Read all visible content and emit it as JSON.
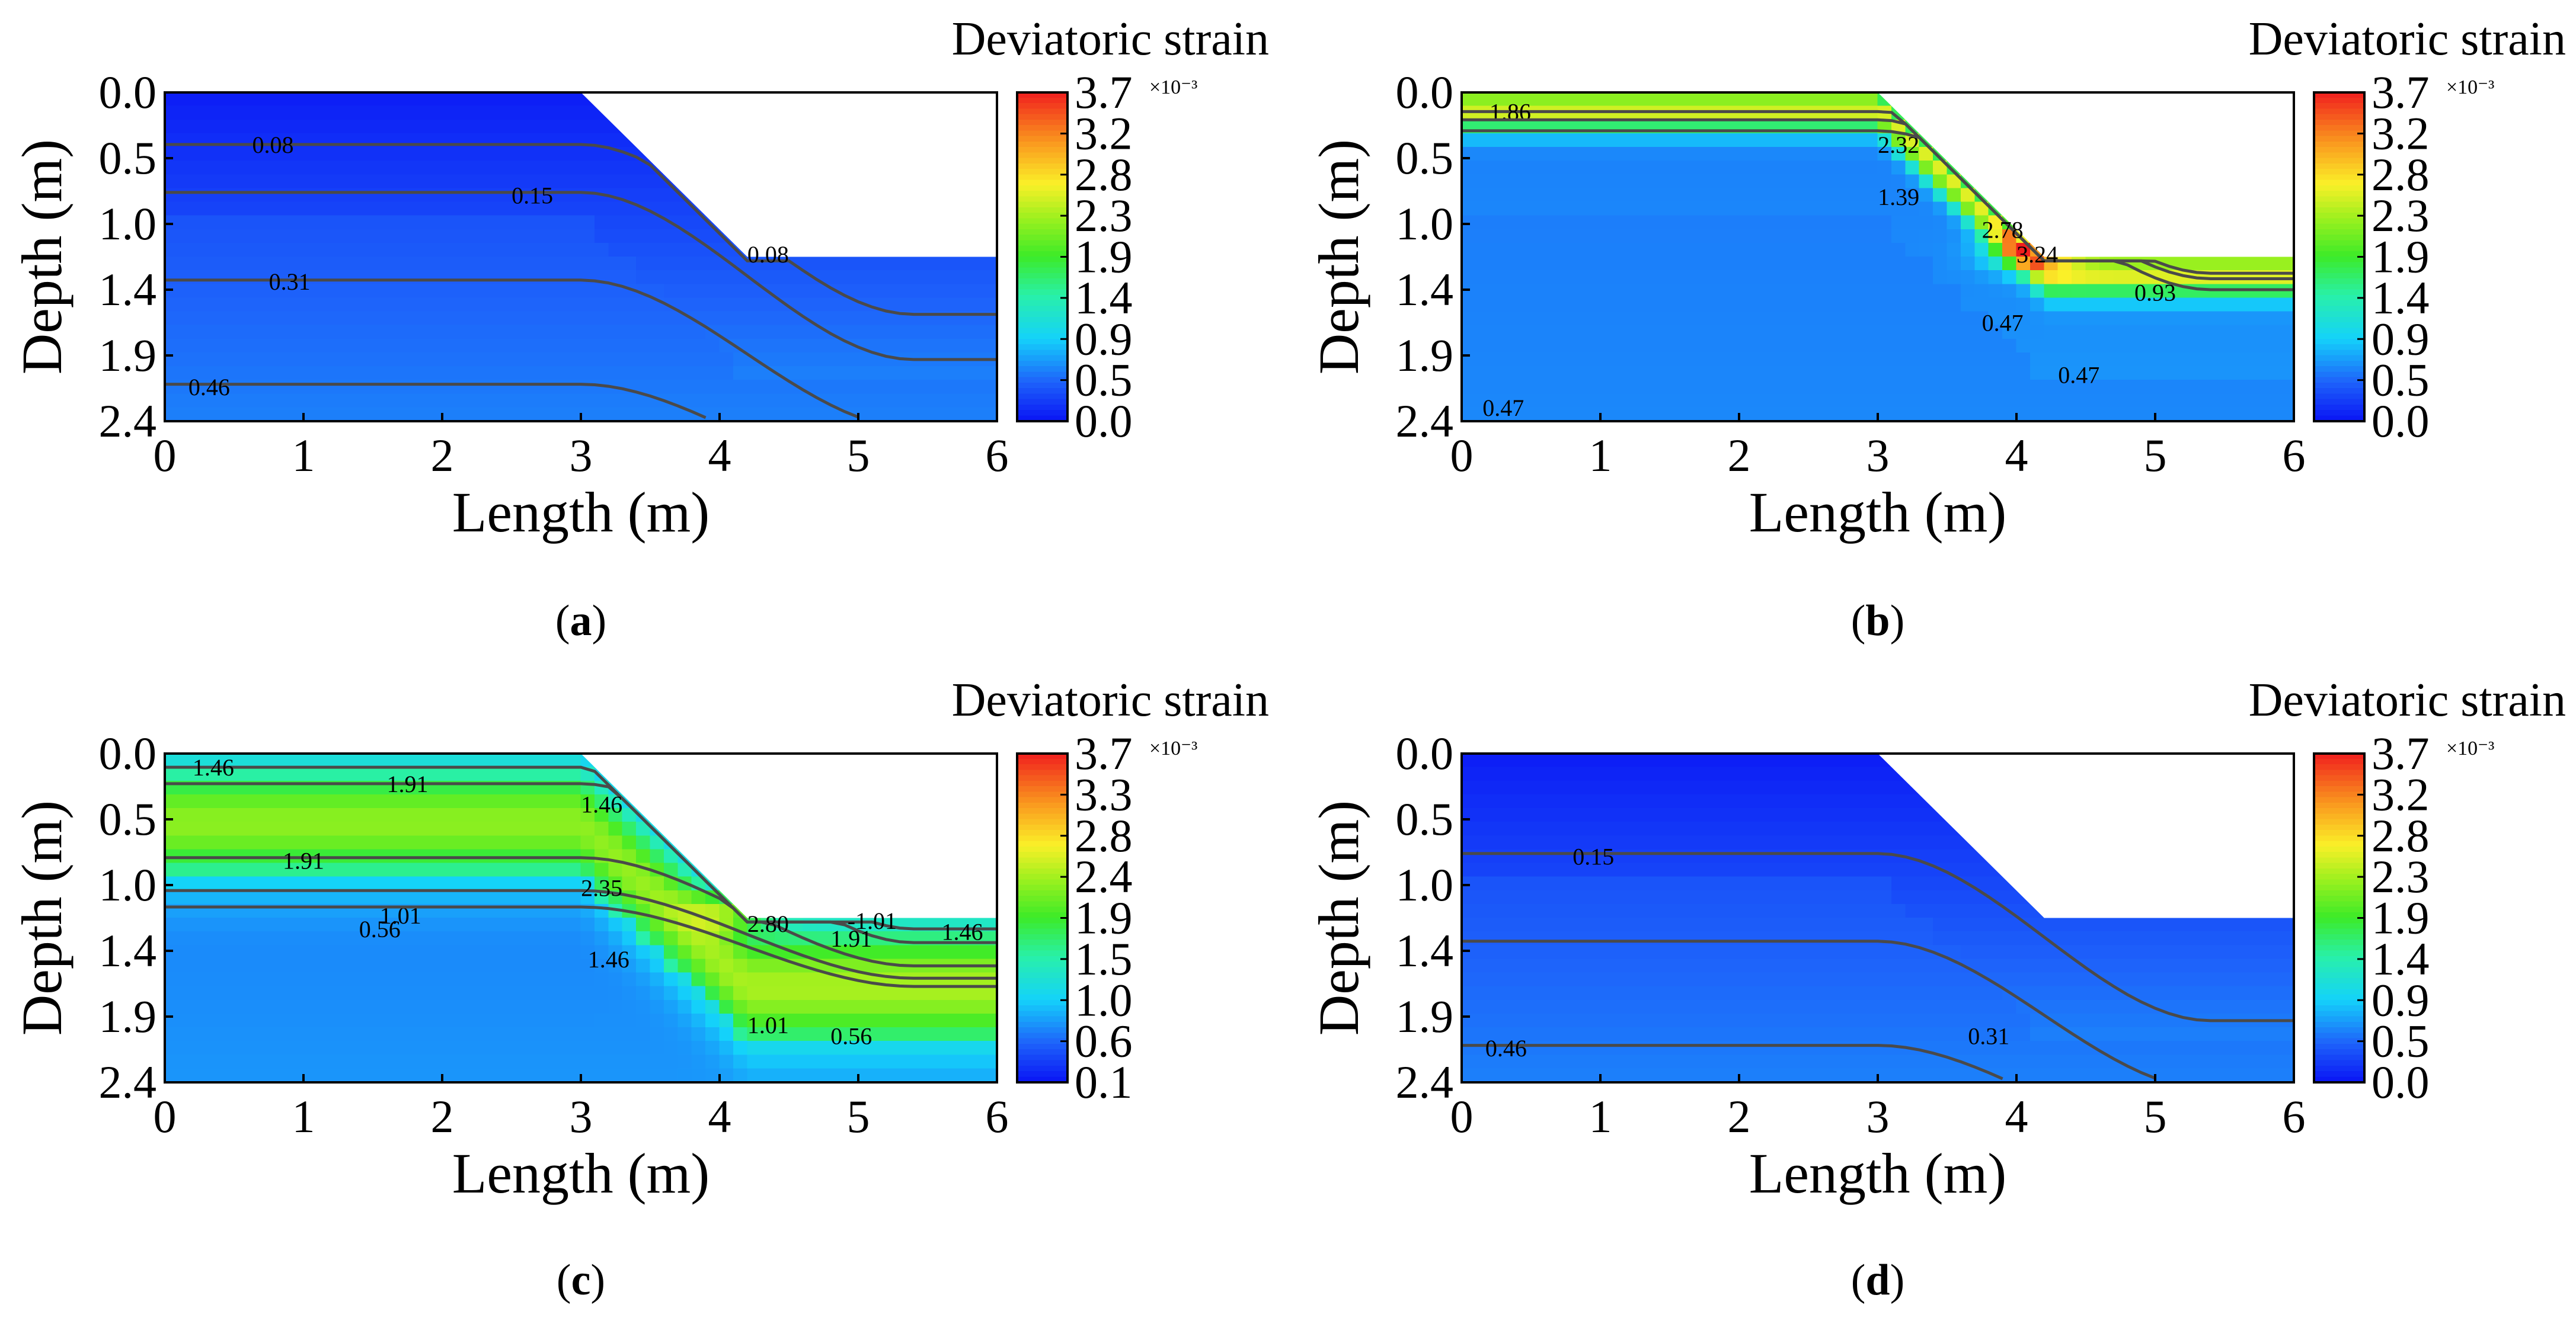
{
  "figure": {
    "panel_letter_open": "(",
    "panel_letter_close": ")"
  },
  "chart_data": [
    {
      "type": "heatmap",
      "panel": "a",
      "colorbar_title": "Deviatoric strain",
      "colorbar_ticks": [
        "3.7",
        "3.2",
        "2.8",
        "2.3",
        "1.9",
        "1.4",
        "0.9",
        "0.5",
        "0.0"
      ],
      "colorbar_exponent": "×10⁻³",
      "colorbar_range": [
        0.0,
        3.7
      ],
      "xlabel": "Length (m)",
      "ylabel": "Depth (m)",
      "xlim": [
        0,
        6
      ],
      "ylim": [
        0.0,
        2.4
      ],
      "xticks": [
        "0",
        "1",
        "2",
        "3",
        "4",
        "5",
        "6"
      ],
      "yticks": [
        "0.0",
        "0.5",
        "1.0",
        "1.4",
        "1.9",
        "2.4"
      ],
      "slope": {
        "crest_x": 3.0,
        "toe_x": 4.2,
        "toe_depth": 1.2
      },
      "field": {
        "base": 0.05,
        "depth_gain": 0.25,
        "slope_band": 0.0,
        "slope_band_center": 0.0,
        "slope_band_width": 0.0,
        "hot_x": 0,
        "hot_depth": 0,
        "hot_amp": 0,
        "deep_value": 0.45
      },
      "contours": [
        {
          "label": "0.08",
          "label_x": 0.78,
          "label_depth": 0.38,
          "depth_left": 0.38,
          "depth_right": 1.62
        },
        {
          "label": "0.15",
          "label_x": 2.65,
          "label_depth": 0.75,
          "depth_left": 0.73,
          "depth_right": 1.95
        },
        {
          "label": "0.31",
          "label_x": 0.9,
          "label_depth": 1.38,
          "depth_left": 1.37,
          "depth_right": 2.45
        },
        {
          "label": "0.46",
          "label_x": 0.32,
          "label_depth": 2.15,
          "depth_left": 2.13,
          "depth_right": 2.9
        }
      ],
      "extra_labels": [
        {
          "label": "0.08",
          "x": 4.35,
          "depth": 1.18
        }
      ]
    },
    {
      "type": "heatmap",
      "panel": "b",
      "colorbar_title": "Deviatoric strain",
      "colorbar_ticks": [
        "3.7",
        "3.2",
        "2.8",
        "2.3",
        "1.9",
        "1.4",
        "0.9",
        "0.5",
        "0.0"
      ],
      "colorbar_exponent": "×10⁻³",
      "colorbar_range": [
        0.0,
        3.7
      ],
      "xlabel": "Length (m)",
      "ylabel": "Depth (m)",
      "xlim": [
        0,
        6
      ],
      "ylim": [
        0.0,
        2.4
      ],
      "xticks": [
        "0",
        "1",
        "2",
        "3",
        "4",
        "5",
        "6"
      ],
      "yticks": [
        "0.0",
        "0.5",
        "1.0",
        "1.4",
        "1.9",
        "2.4"
      ],
      "slope": {
        "crest_x": 3.0,
        "toe_x": 4.2,
        "toe_depth": 1.2
      },
      "field": {
        "base": 0.55,
        "depth_gain": 0.05,
        "slope_band": 2.0,
        "slope_band_center": 0.12,
        "slope_band_width": 0.16,
        "hot_x": 4.1,
        "hot_depth": 1.15,
        "hot_amp": 1.4,
        "deep_value": 0.5
      },
      "contours": [
        {
          "label": "1.86",
          "label_x": 0.35,
          "label_depth": 0.14,
          "depth_left": 0.14,
          "depth_right": 1.32
        },
        {
          "label": "2.32",
          "label_x": 3.15,
          "label_depth": 0.38,
          "depth_left": 0.2,
          "depth_right": 1.36
        },
        {
          "label": "1.39",
          "label_x": 3.15,
          "label_depth": 0.76,
          "depth_left": 0.28,
          "depth_right": 1.44
        }
      ],
      "extra_labels": [
        {
          "label": "2.78",
          "x": 3.9,
          "depth": 1.0
        },
        {
          "label": "3.24",
          "x": 4.15,
          "depth": 1.18
        },
        {
          "label": "0.93",
          "x": 5.0,
          "depth": 1.46
        },
        {
          "label": "0.47",
          "x": 3.9,
          "depth": 1.68
        },
        {
          "label": "0.47",
          "x": 4.45,
          "depth": 2.06
        },
        {
          "label": "0.47",
          "x": 0.3,
          "depth": 2.3
        }
      ]
    },
    {
      "type": "heatmap",
      "panel": "c",
      "colorbar_title": "Deviatoric strain",
      "colorbar_ticks": [
        "3.7",
        "3.3",
        "2.8",
        "2.4",
        "1.9",
        "1.5",
        "1.0",
        "0.6",
        "0.1"
      ],
      "colorbar_exponent": "×10⁻³",
      "colorbar_range": [
        0.1,
        3.7
      ],
      "xlabel": "Length (m)",
      "ylabel": "Depth (m)",
      "xlim": [
        0,
        6
      ],
      "ylim": [
        0.0,
        2.4
      ],
      "xticks": [
        "0",
        "1",
        "2",
        "3",
        "4",
        "5",
        "6"
      ],
      "yticks": [
        "0.0",
        "0.5",
        "1.0",
        "1.4",
        "1.9",
        "2.4"
      ],
      "slope": {
        "crest_x": 3.0,
        "toe_x": 4.2,
        "toe_depth": 1.2
      },
      "field": {
        "base": 0.6,
        "depth_gain": 0.1,
        "slope_band": 1.6,
        "slope_band_center": 0.5,
        "slope_band_width": 0.45,
        "hot_x": 4.1,
        "hot_depth": 1.15,
        "hot_amp": 0.9,
        "deep_value": 0.6
      },
      "contours": [
        {
          "label": "1.46",
          "label_x": 0.35,
          "label_depth": 0.1,
          "depth_left": 0.1,
          "depth_right": 1.28
        },
        {
          "label": "1.91",
          "label_x": 1.75,
          "label_depth": 0.22,
          "depth_left": 0.22,
          "depth_right": 1.38
        },
        {
          "label": "1.91",
          "label_x": 1.0,
          "label_depth": 0.78,
          "depth_left": 0.76,
          "depth_right": 1.55
        },
        {
          "label": "1.01",
          "label_x": 1.7,
          "label_depth": 1.18,
          "depth_left": 1.0,
          "depth_right": 1.64
        },
        {
          "label": "0.56",
          "label_x": 1.55,
          "label_depth": 1.28,
          "depth_left": 1.12,
          "depth_right": 1.7
        }
      ],
      "extra_labels": [
        {
          "label": "1.46",
          "x": 3.15,
          "depth": 0.37
        },
        {
          "label": "2.35",
          "x": 3.15,
          "depth": 0.98
        },
        {
          "label": "2.80",
          "x": 4.35,
          "depth": 1.24
        },
        {
          "label": "-1.01",
          "x": 5.1,
          "depth": 1.22
        },
        {
          "label": "1.91",
          "x": 4.95,
          "depth": 1.35
        },
        {
          "label": "1.46",
          "x": 5.75,
          "depth": 1.3
        },
        {
          "label": "1.46",
          "x": 3.2,
          "depth": 1.5
        },
        {
          "label": "1.01",
          "x": 4.35,
          "depth": 1.98
        },
        {
          "label": "0.56",
          "x": 4.95,
          "depth": 2.06
        }
      ]
    },
    {
      "type": "heatmap",
      "panel": "d",
      "colorbar_title": "Deviatoric strain",
      "colorbar_ticks": [
        "3.7",
        "3.2",
        "2.8",
        "2.3",
        "1.9",
        "1.4",
        "0.9",
        "0.5",
        "0.0"
      ],
      "colorbar_exponent": "×10⁻³",
      "colorbar_range": [
        0.0,
        3.7
      ],
      "xlabel": "Length (m)",
      "ylabel": "Depth (m)",
      "xlim": [
        0,
        6
      ],
      "ylim": [
        0.0,
        2.4
      ],
      "xticks": [
        "0",
        "1",
        "2",
        "3",
        "4",
        "5",
        "6"
      ],
      "yticks": [
        "0.0",
        "0.5",
        "1.0",
        "1.4",
        "1.9",
        "2.4"
      ],
      "slope": {
        "crest_x": 3.0,
        "toe_x": 4.2,
        "toe_depth": 1.2
      },
      "field": {
        "base": 0.05,
        "depth_gain": 0.25,
        "slope_band": 0.0,
        "slope_band_center": 0.0,
        "slope_band_width": 0.0,
        "hot_x": 0,
        "hot_depth": 0,
        "hot_amp": 0,
        "deep_value": 0.45
      },
      "contours": [
        {
          "label": "0.15",
          "label_x": 0.95,
          "label_depth": 0.75,
          "depth_left": 0.73,
          "depth_right": 1.95
        },
        {
          "label": "0.31",
          "label_x": 3.8,
          "label_depth": 2.06,
          "depth_left": 1.37,
          "depth_right": 2.45
        },
        {
          "label": "0.46",
          "label_x": 0.32,
          "label_depth": 2.15,
          "depth_left": 2.13,
          "depth_right": 2.9
        }
      ],
      "extra_labels": []
    }
  ]
}
